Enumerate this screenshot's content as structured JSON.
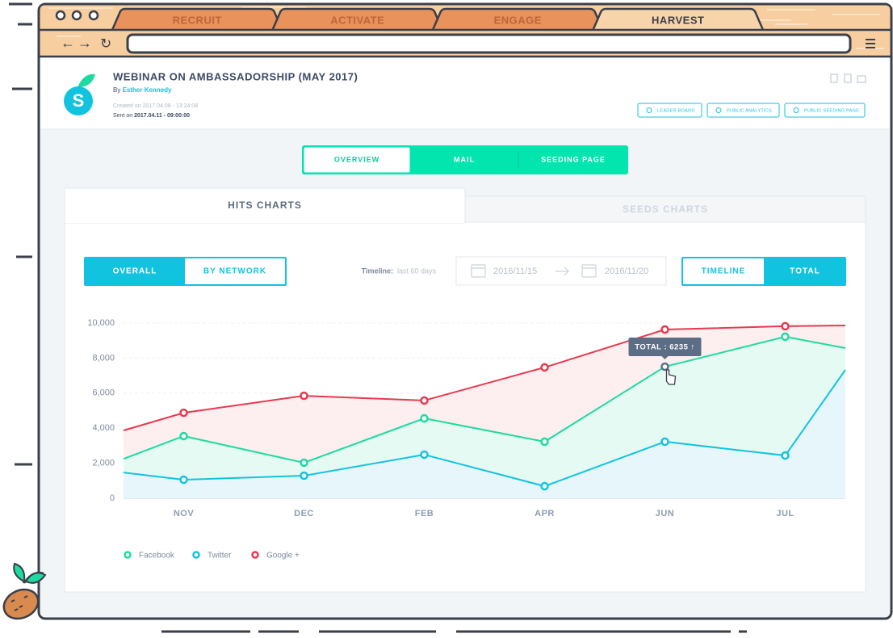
{
  "browser": {
    "tabs": [
      "RECRUIT",
      "ACTIVATE",
      "ENGAGE",
      "HARVEST"
    ]
  },
  "header": {
    "logo": "S",
    "title": "WEBINAR ON AMBASSADORSHIP (MAY 2017)",
    "by": "By",
    "author": "Esther Kennedy",
    "created": "Created on 2017.04.08 - 13:24:08",
    "sent_label": "Sent on",
    "sent": "2017.04.11 - 09:00:00",
    "buttons": [
      "LEADER BOARD",
      "PUBLIC ANALYTICS",
      "PUBLIC SEEDING PAGE"
    ]
  },
  "nav": [
    "OVERVIEW",
    "MAIL",
    "SEEDING PAGE"
  ],
  "panel_tabs": [
    "HITS CHARTS",
    "SEEDS CHARTS"
  ],
  "filters": {
    "view": [
      "OVERALL",
      "BY NETWORK"
    ],
    "timeline_label": "Timeline:",
    "timeline_range": "last 60 days",
    "date_from": "2016/11/15",
    "date_to": "2016/11/20",
    "mode": [
      "TIMELINE",
      "TOTAL"
    ]
  },
  "chart_data": {
    "type": "line",
    "fill_area": true,
    "categories": [
      null,
      "NOV",
      "DEC",
      "FEB",
      "APR",
      "JUN",
      "JUL",
      null
    ],
    "series": [
      {
        "name": "Facebook",
        "color": "#1ddba0",
        "values": [
          2250,
          3550,
          2030,
          4560,
          3230,
          7510,
          9220,
          8570
        ]
      },
      {
        "name": "Twitter",
        "color": "#12c3e0",
        "values": [
          1470,
          1060,
          1290,
          2490,
          690,
          3230,
          2440,
          7330
        ]
      },
      {
        "name": "Google +",
        "color": "#e8394f",
        "values": [
          3870,
          4880,
          5850,
          5580,
          7470,
          9630,
          9820,
          9860
        ]
      }
    ],
    "ylim": [
      0,
      10000
    ],
    "yticks": [
      0,
      {
        "value": 2000,
        "label": "2,000"
      },
      {
        "value": 4000,
        "label": "4,000"
      },
      {
        "value": 6000,
        "label": "6,000"
      },
      {
        "value": 8000,
        "label": "8,000"
      },
      {
        "value": 10000,
        "label": "10,000"
      }
    ],
    "grid": true,
    "annotation": {
      "text": "TOTAL : 6235 ↑",
      "series": 0,
      "index": 5
    }
  }
}
